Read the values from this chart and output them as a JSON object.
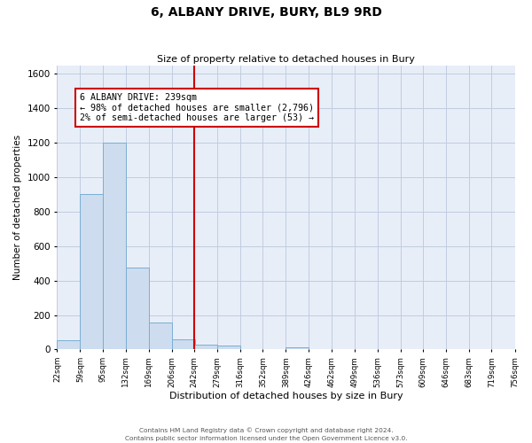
{
  "title": "6, ALBANY DRIVE, BURY, BL9 9RD",
  "subtitle": "Size of property relative to detached houses in Bury",
  "xlabel": "Distribution of detached houses by size in Bury",
  "ylabel": "Number of detached properties",
  "bin_edges": [
    22,
    59,
    95,
    132,
    169,
    206,
    242,
    279,
    316,
    352,
    389,
    426,
    462,
    499,
    536,
    573,
    609,
    646,
    683,
    719,
    756
  ],
  "bar_heights": [
    55,
    900,
    1200,
    475,
    155,
    60,
    30,
    25,
    0,
    0,
    15,
    0,
    0,
    0,
    0,
    0,
    0,
    0,
    0,
    0
  ],
  "bar_color": "#cddcee",
  "bar_edge_color": "#7aafd4",
  "vline_x": 242,
  "vline_color": "#cc0000",
  "annotation_text": "6 ALBANY DRIVE: 239sqm\n← 98% of detached houses are smaller (2,796)\n2% of semi-detached houses are larger (53) →",
  "ylim": [
    0,
    1650
  ],
  "xlim": [
    22,
    756
  ],
  "yticks": [
    0,
    200,
    400,
    600,
    800,
    1000,
    1200,
    1400,
    1600
  ],
  "grid_color": "#c0cce0",
  "bg_color": "#e8eef8",
  "footnote1": "Contains HM Land Registry data © Crown copyright and database right 2024.",
  "footnote2": "Contains public sector information licensed under the Open Government Licence v3.0."
}
